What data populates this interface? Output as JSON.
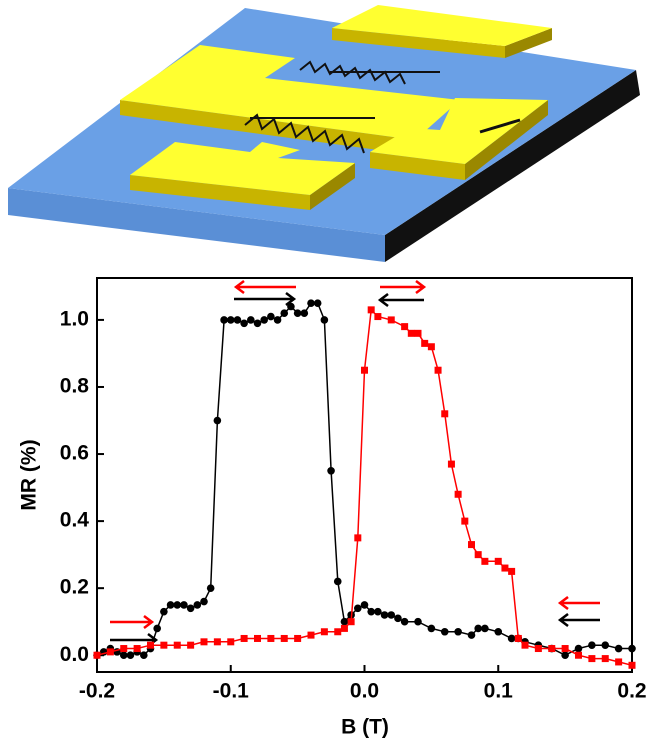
{
  "chart_data": {
    "type": "line",
    "xlabel": "B (T)",
    "ylabel": "MR (%)",
    "xlim": [
      -0.2,
      0.2
    ],
    "ylim": [
      -0.05,
      1.125
    ],
    "xticks": [
      -0.2,
      -0.1,
      {
        "value": 0,
        "label": "0.0"
      },
      0.1,
      0.2
    ],
    "yticks": [
      {
        "value": 0,
        "label": "0.0"
      },
      0.2,
      0.4,
      0.6,
      0.8,
      {
        "value": 1,
        "label": "1.0"
      }
    ],
    "series": [
      {
        "color": "#000000",
        "marker": "circle",
        "x": [
          -0.2,
          -0.195,
          -0.19,
          -0.185,
          -0.18,
          -0.175,
          -0.17,
          -0.165,
          -0.16,
          -0.155,
          -0.15,
          -0.145,
          -0.14,
          -0.135,
          -0.13,
          -0.125,
          -0.12,
          -0.115,
          -0.11,
          -0.105,
          -0.1,
          -0.095,
          -0.09,
          -0.085,
          -0.08,
          -0.075,
          -0.07,
          -0.065,
          -0.06,
          -0.055,
          -0.05,
          -0.045,
          -0.04,
          -0.035,
          -0.03,
          -0.025,
          -0.02,
          -0.015,
          -0.01,
          -0.005,
          0,
          0.005,
          0.01,
          0.015,
          0.02,
          0.025,
          0.03,
          0.04,
          0.05,
          0.06,
          0.07,
          0.08,
          0.085,
          0.09,
          0.1,
          0.11,
          0.115,
          0.12,
          0.13,
          0.14,
          0.15,
          0.16,
          0.17,
          0.18,
          0.19,
          0.2
        ],
        "values": [
          0.0,
          0.01,
          0.02,
          0.01,
          0.0,
          0.0,
          0.01,
          0.0,
          0.02,
          0.08,
          0.13,
          0.15,
          0.15,
          0.15,
          0.14,
          0.15,
          0.16,
          0.2,
          0.7,
          1.0,
          1.0,
          1.0,
          0.99,
          1.0,
          0.99,
          1.0,
          1.01,
          1.0,
          1.02,
          1.04,
          1.02,
          1.02,
          1.05,
          1.05,
          1.0,
          0.55,
          0.22,
          0.1,
          0.12,
          0.14,
          0.15,
          0.13,
          0.13,
          0.12,
          0.12,
          0.11,
          0.1,
          0.1,
          0.08,
          0.07,
          0.07,
          0.06,
          0.08,
          0.08,
          0.07,
          0.05,
          0.05,
          0.04,
          0.03,
          0.02,
          0.0,
          0.02,
          0.03,
          0.03,
          0.02,
          0.02
        ]
      },
      {
        "color": "#ff0000",
        "marker": "square",
        "x": [
          -0.2,
          -0.19,
          -0.18,
          -0.17,
          -0.16,
          -0.15,
          -0.14,
          -0.13,
          -0.12,
          -0.11,
          -0.1,
          -0.09,
          -0.08,
          -0.07,
          -0.06,
          -0.05,
          -0.04,
          -0.03,
          -0.02,
          -0.015,
          -0.01,
          -0.005,
          0,
          0.005,
          0.01,
          0.02,
          0.03,
          0.035,
          0.04,
          0.045,
          0.05,
          0.055,
          0.06,
          0.065,
          0.07,
          0.075,
          0.08,
          0.085,
          0.09,
          0.1,
          0.105,
          0.11,
          0.115,
          0.12,
          0.13,
          0.14,
          0.15,
          0.16,
          0.17,
          0.18,
          0.19,
          0.2
        ],
        "values": [
          0.0,
          0.01,
          0.02,
          0.02,
          0.03,
          0.03,
          0.03,
          0.03,
          0.04,
          0.04,
          0.04,
          0.05,
          0.05,
          0.05,
          0.05,
          0.05,
          0.06,
          0.07,
          0.07,
          0.08,
          0.1,
          0.35,
          0.85,
          1.03,
          1.01,
          1.0,
          0.98,
          0.96,
          0.96,
          0.93,
          0.92,
          0.85,
          0.72,
          0.57,
          0.48,
          0.4,
          0.33,
          0.3,
          0.28,
          0.28,
          0.26,
          0.25,
          0.05,
          0.03,
          0.02,
          0.02,
          0.02,
          0.0,
          -0.01,
          -0.01,
          -0.02,
          -0.03
        ]
      }
    ]
  }
}
